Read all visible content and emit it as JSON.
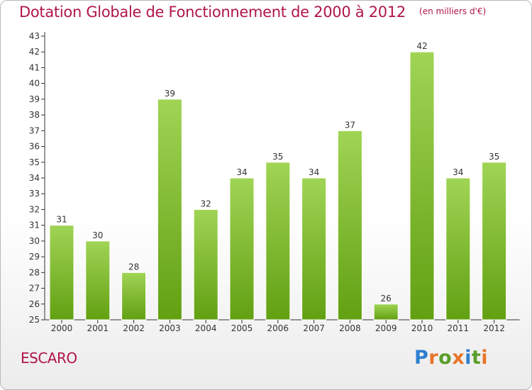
{
  "header": {
    "title": "Dotation Globale de Fonctionnement de 2000 à 2012",
    "unit": "(en milliers d'€)"
  },
  "footer": {
    "commune": "ESCARO",
    "logo_text": "Proxiti"
  },
  "colors": {
    "title": "#b0154c",
    "bar_top": "#a0d455",
    "bar_bottom": "#62a012",
    "logo_letters": [
      "#2f7fd0",
      "#e8742a",
      "#5a9e2a",
      "#e8742a",
      "#2f7fd0",
      "#5a9e2a",
      "#e8742a"
    ]
  },
  "chart_data": {
    "type": "bar",
    "title": "Dotation Globale de Fonctionnement de 2000 à 2012",
    "subtitle": "(en milliers d'€)",
    "xlabel": "",
    "ylabel": "",
    "categories": [
      "2000",
      "2001",
      "2002",
      "2003",
      "2004",
      "2005",
      "2006",
      "2007",
      "2008",
      "2009",
      "2010",
      "2011",
      "2012"
    ],
    "values": [
      31,
      30,
      28,
      39,
      32,
      34,
      35,
      34,
      37,
      26,
      42,
      34,
      35
    ],
    "ylim": [
      25,
      43
    ],
    "yticks": [
      25,
      26,
      27,
      28,
      29,
      30,
      31,
      32,
      33,
      34,
      35,
      36,
      37,
      38,
      39,
      40,
      41,
      42,
      43
    ],
    "grid": false,
    "legend": "none",
    "data_labels": true
  }
}
